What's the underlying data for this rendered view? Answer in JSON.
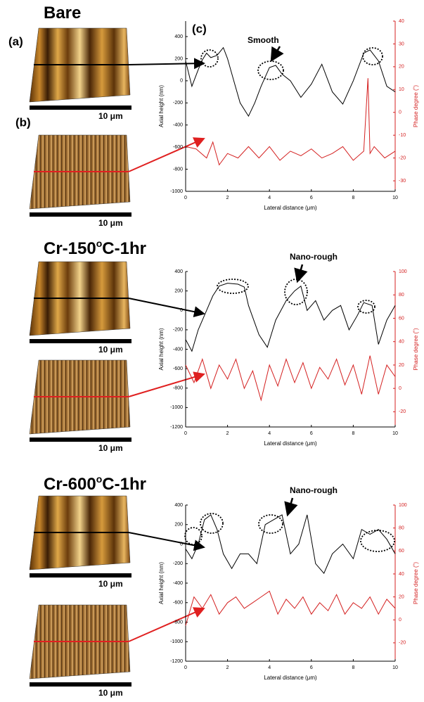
{
  "chart_data": [
    {
      "type": "line",
      "heading": [
        "Bare"
      ],
      "panel_labels": [
        "(a)",
        "(b)",
        "(c)"
      ],
      "annotation": "Smooth",
      "scale_labels": [
        "10 μm",
        "10 μm"
      ],
      "xlabel": "Lateral distance (μm)",
      "ylabel": "Axial height (nm)",
      "y2label": "Phase degree (˚)",
      "xlim": [
        0,
        10
      ],
      "xticks": [
        0,
        2,
        4,
        6,
        8,
        10
      ],
      "ylim": [
        -1000,
        540
      ],
      "yticks": [
        400,
        200,
        0,
        -200,
        -400,
        -600,
        -800,
        -1000
      ],
      "y2lim": [
        -34.6,
        40
      ],
      "y2ticks": [
        40,
        30,
        20,
        10,
        0,
        -10,
        -20,
        -30
      ],
      "series": [
        {
          "color": "#000000",
          "x": [
            0,
            0.3,
            0.6,
            0.8,
            1.0,
            1.2,
            1.5,
            1.8,
            2.0,
            2.3,
            2.6,
            3.0,
            3.3,
            3.6,
            4.0,
            4.3,
            4.6,
            5.0,
            5.5,
            6.0,
            6.5,
            7.0,
            7.5,
            8.0,
            8.5,
            8.8,
            9.2,
            9.6,
            10
          ],
          "values": [
            180,
            -50,
            100,
            190,
            250,
            210,
            230,
            300,
            200,
            0,
            -200,
            -320,
            -200,
            -50,
            120,
            140,
            60,
            0,
            -150,
            -30,
            150,
            -100,
            -210,
            0,
            250,
            280,
            180,
            -50,
            -100
          ]
        },
        {
          "color": "#d42020",
          "axis": "y2",
          "x": [
            0,
            0.5,
            1,
            1.3,
            1.6,
            2,
            2.5,
            3,
            3.5,
            4,
            4.5,
            5,
            5.5,
            6,
            6.5,
            7,
            7.5,
            8,
            8.5,
            8.7,
            8.8,
            9,
            9.5,
            10
          ],
          "values": [
            -15,
            -16,
            -20,
            -13,
            -23,
            -18,
            -20,
            -15,
            -20,
            -15,
            -21,
            -17,
            -19,
            -16,
            -20,
            -18,
            -15,
            -21,
            -17,
            15,
            -18,
            -15,
            -20,
            -17
          ]
        }
      ]
    },
    {
      "type": "line",
      "heading": [
        "Cr-150",
        "o",
        "C-1hr"
      ],
      "annotation": "Nano-rough",
      "scale_labels": [
        "10 μm",
        "10 μm"
      ],
      "xlabel": "Lateral distance (μm)",
      "ylabel": "Axial height (nm)",
      "y2label": "Phase degree (˚)",
      "xlim": [
        0,
        10
      ],
      "xticks": [
        0,
        2,
        4,
        6,
        8,
        10
      ],
      "ylim": [
        -1200,
        400
      ],
      "yticks": [
        400,
        200,
        0,
        -200,
        -400,
        -600,
        -800,
        -1000,
        -1200
      ],
      "y2lim": [
        -33,
        100
      ],
      "y2ticks": [
        100,
        80,
        60,
        40,
        20,
        0,
        -20
      ],
      "series": [
        {
          "color": "#000000",
          "x": [
            0,
            0.3,
            0.6,
            1.0,
            1.3,
            1.6,
            2.0,
            2.5,
            2.8,
            3.0,
            3.5,
            3.9,
            4.3,
            4.8,
            5.2,
            5.5,
            5.8,
            6.2,
            6.6,
            7.0,
            7.4,
            7.8,
            8.2,
            8.5,
            8.9,
            9.2,
            9.6,
            10
          ],
          "values": [
            -300,
            -420,
            -200,
            0,
            150,
            250,
            280,
            270,
            240,
            50,
            -250,
            -380,
            -100,
            100,
            200,
            250,
            0,
            100,
            -100,
            0,
            50,
            -200,
            -50,
            80,
            50,
            -350,
            -100,
            50
          ]
        },
        {
          "color": "#d42020",
          "axis": "y2",
          "x": [
            0,
            0.4,
            0.8,
            1.2,
            1.6,
            2.0,
            2.4,
            2.8,
            3.2,
            3.6,
            4.0,
            4.4,
            4.8,
            5.2,
            5.6,
            6.0,
            6.4,
            6.8,
            7.2,
            7.6,
            8.0,
            8.4,
            8.8,
            9.2,
            9.6,
            10
          ],
          "values": [
            20,
            5,
            25,
            0,
            20,
            8,
            25,
            0,
            15,
            -10,
            20,
            2,
            25,
            5,
            22,
            0,
            18,
            8,
            25,
            3,
            20,
            -5,
            28,
            -5,
            20,
            10
          ]
        }
      ]
    },
    {
      "type": "line",
      "heading": [
        "Cr-600",
        "o",
        "C-1hr"
      ],
      "annotation": "Nano-rough",
      "scale_labels": [
        "10 μm",
        "10 μm"
      ],
      "xlabel": "Lateral distance (μm)",
      "ylabel": "Axial height (nm)",
      "y2label": "Phase degree (˚)",
      "xlim": [
        0,
        10
      ],
      "xticks": [
        0,
        2,
        4,
        6,
        8,
        10
      ],
      "ylim": [
        -1200,
        400
      ],
      "yticks": [
        400,
        200,
        0,
        -200,
        -400,
        -600,
        -800,
        -1000,
        -1200
      ],
      "y2lim": [
        -36,
        100
      ],
      "y2ticks": [
        100,
        80,
        60,
        40,
        20,
        0,
        -20
      ],
      "series": [
        {
          "color": "#000000",
          "x": [
            0,
            0.3,
            0.6,
            0.9,
            1.2,
            1.5,
            1.8,
            2.2,
            2.6,
            3.0,
            3.4,
            3.8,
            4.2,
            4.6,
            5.0,
            5.4,
            5.8,
            6.2,
            6.6,
            7.0,
            7.5,
            8.0,
            8.4,
            8.8,
            9.2,
            9.6,
            10
          ],
          "values": [
            -50,
            -150,
            0,
            250,
            300,
            150,
            -100,
            -250,
            -100,
            -100,
            -200,
            200,
            250,
            300,
            -100,
            0,
            300,
            -200,
            -300,
            -100,
            0,
            -150,
            150,
            100,
            150,
            50,
            -100
          ]
        },
        {
          "color": "#d42020",
          "axis": "y2",
          "x": [
            0,
            0.4,
            0.8,
            1.2,
            1.6,
            2.0,
            2.4,
            2.8,
            3.2,
            3.6,
            4.0,
            4.4,
            4.8,
            5.2,
            5.6,
            6.0,
            6.4,
            6.8,
            7.2,
            7.6,
            8.0,
            8.4,
            8.8,
            9.2,
            9.6,
            10
          ],
          "values": [
            -5,
            20,
            10,
            22,
            5,
            15,
            20,
            10,
            15,
            20,
            25,
            5,
            18,
            10,
            20,
            5,
            15,
            8,
            22,
            5,
            15,
            10,
            20,
            5,
            18,
            10
          ]
        }
      ]
    }
  ]
}
